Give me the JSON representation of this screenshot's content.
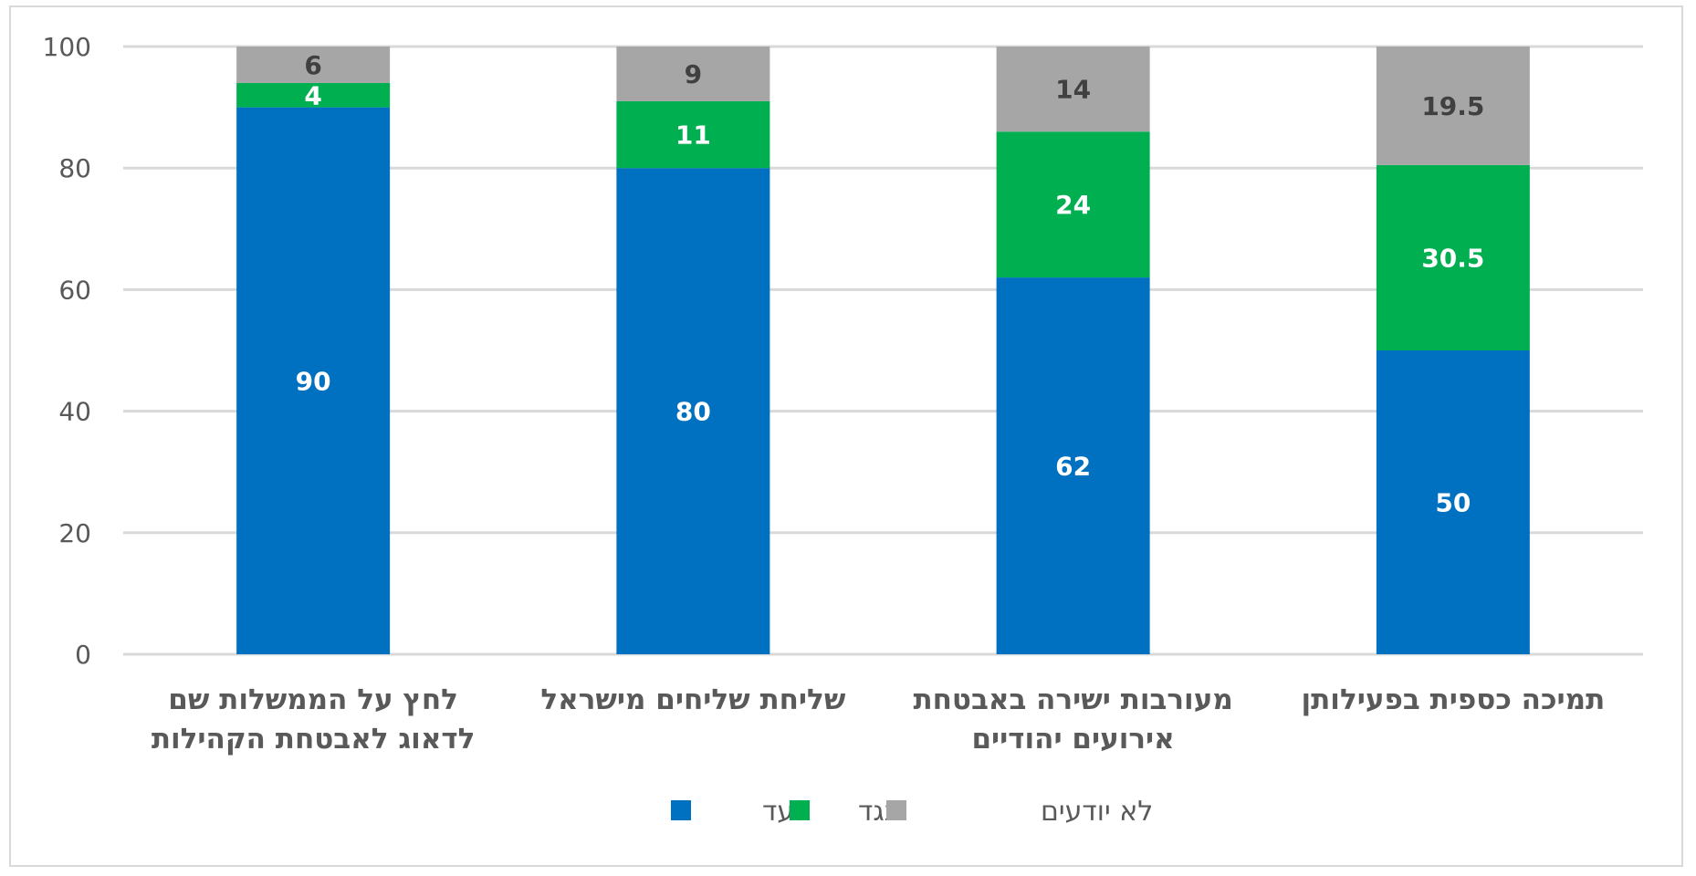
{
  "chart_data": {
    "type": "bar",
    "stacked": true,
    "categories": [
      [
        "לחץ על הממשלות שם",
        "לדאוג לאבטחת הקהילות"
      ],
      [
        "שליחת שליחים מישראל"
      ],
      [
        "מעורבות ישירה באבטחת",
        "אירועים יהודיים"
      ],
      [
        "תמיכה כספית בפעילותן"
      ]
    ],
    "series": [
      {
        "name": "בעד",
        "values": [
          90,
          80,
          62,
          50
        ],
        "color": "#0070c0",
        "label_color": "#ffffff"
      },
      {
        "name": "נגד",
        "values": [
          4,
          11,
          24,
          30.5
        ],
        "color": "#00b050",
        "label_color": "#ffffff"
      },
      {
        "name": "לא יודעים",
        "values": [
          6,
          9,
          14,
          19.5
        ],
        "color": "#a6a6a6",
        "label_color": "#404040"
      }
    ],
    "ylim": [
      0,
      100
    ],
    "yticks": [
      0,
      20,
      40,
      60,
      80,
      100
    ],
    "grid": true,
    "legend": "bottom",
    "title": "",
    "xlabel": "",
    "ylabel": ""
  }
}
